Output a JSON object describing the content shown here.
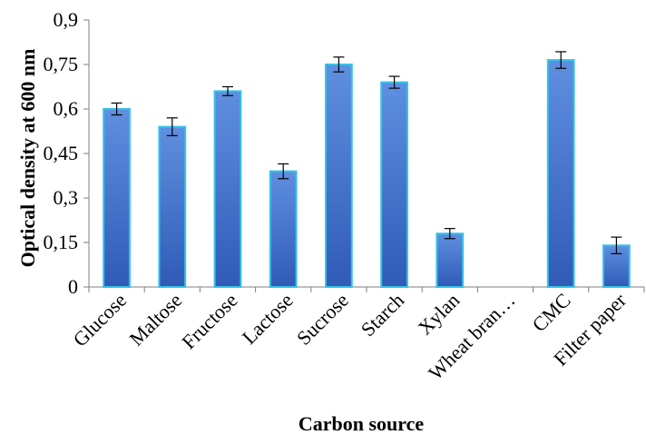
{
  "colors": {
    "bar_dark": "#2f5bb7",
    "bar_light": "#5f8fe0",
    "bar_edge": "#35c3e6",
    "axis": "#7f7f7f",
    "error": "#000000"
  },
  "chart_data": {
    "type": "bar",
    "xlabel": "Carbon source",
    "ylabel": "Optical density at 600 nm",
    "ylim": [
      0,
      0.9
    ],
    "yticks": [
      "0",
      "0,15",
      "0,3",
      "0,45",
      "0,6",
      "0,75",
      "0,9"
    ],
    "ytick_values": [
      0,
      0.15,
      0.3,
      0.45,
      0.6,
      0.75,
      0.9
    ],
    "categories": [
      "Glucose",
      "Maltose",
      "Fructose",
      "Lactose",
      "Sucrose",
      "Starch",
      "Xylan",
      "Wheat bran…",
      "CMC",
      "Filter paper"
    ],
    "values": [
      0.6,
      0.54,
      0.66,
      0.39,
      0.75,
      0.69,
      0.18,
      0,
      0.765,
      0.14
    ],
    "errors": [
      0.02,
      0.03,
      0.015,
      0.025,
      0.025,
      0.02,
      0.017,
      0,
      0.028,
      0.028
    ],
    "grid": false,
    "legend": "none"
  }
}
